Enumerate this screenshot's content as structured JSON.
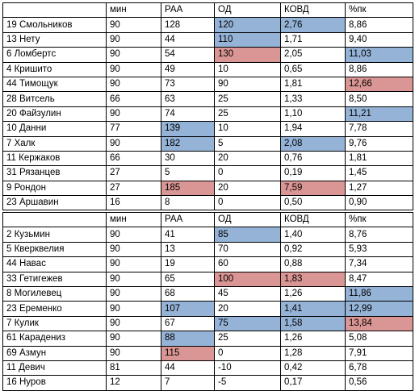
{
  "colors": {
    "blue_highlight": "#95b3d7",
    "red_highlight": "#da9694",
    "grid": "#000000"
  },
  "columns": [
    "",
    "мин",
    "РАА",
    "ОД",
    "КОВД",
    "%пк"
  ],
  "table_top": {
    "rows": [
      {
        "cells": [
          "19 Смольников",
          "90",
          "128",
          "120",
          "2,76",
          "8,86"
        ],
        "hl": [
          null,
          null,
          null,
          "blue",
          "blue",
          null
        ]
      },
      {
        "cells": [
          "13 Нету",
          "90",
          "44",
          "110",
          "1,71",
          "9,40"
        ],
        "hl": [
          null,
          null,
          null,
          "blue",
          null,
          null
        ]
      },
      {
        "cells": [
          "6 Ломбертс",
          "90",
          "54",
          "130",
          "2,05",
          "11,03"
        ],
        "hl": [
          null,
          null,
          null,
          "red",
          null,
          "blue"
        ]
      },
      {
        "cells": [
          "4 Кришито",
          "90",
          "49",
          "10",
          "0,65",
          "8,86"
        ],
        "hl": [
          null,
          null,
          null,
          null,
          null,
          null
        ]
      },
      {
        "cells": [
          "44 Тимощук",
          "90",
          "73",
          "90",
          "1,81",
          "12,66"
        ],
        "hl": [
          null,
          null,
          null,
          null,
          null,
          "red"
        ]
      },
      {
        "cells": [
          "28 Витсель",
          "66",
          "63",
          "25",
          "1,33",
          "8,50"
        ],
        "hl": [
          null,
          null,
          null,
          null,
          null,
          null
        ]
      },
      {
        "cells": [
          "20 Файзулин",
          "90",
          "74",
          "25",
          "1,10",
          "11,21"
        ],
        "hl": [
          null,
          null,
          null,
          null,
          null,
          "blue"
        ]
      },
      {
        "cells": [
          "10 Данни",
          "77",
          "139",
          "10",
          "1,94",
          "7,78"
        ],
        "hl": [
          null,
          null,
          "blue",
          null,
          null,
          null
        ]
      },
      {
        "cells": [
          "7 Халк",
          "90",
          "182",
          "5",
          "2,08",
          "9,76"
        ],
        "hl": [
          null,
          null,
          "blue",
          null,
          "blue",
          null
        ]
      },
      {
        "cells": [
          "11 Кержаков",
          "66",
          "30",
          "20",
          "0,76",
          "1,81"
        ],
        "hl": [
          null,
          null,
          null,
          null,
          null,
          null
        ]
      },
      {
        "cells": [
          "31 Рязанцев",
          "27",
          "5",
          "0",
          "0,19",
          "1,45"
        ],
        "hl": [
          null,
          null,
          null,
          null,
          null,
          null
        ]
      },
      {
        "cells": [
          "9 Рондон",
          "27",
          "185",
          "20",
          "7,59",
          "1,27"
        ],
        "hl": [
          null,
          null,
          "red",
          null,
          "red",
          null
        ]
      },
      {
        "cells": [
          "23 Аршавин",
          "16",
          "8",
          "0",
          "0,50",
          "0,90"
        ],
        "hl": [
          null,
          null,
          null,
          null,
          null,
          null
        ]
      }
    ]
  },
  "table_bottom": {
    "rows": [
      {
        "cells": [
          "2 Кузьмин",
          "90",
          "41",
          "85",
          "1,40",
          "8,76"
        ],
        "hl": [
          null,
          null,
          null,
          "blue",
          null,
          null
        ]
      },
      {
        "cells": [
          "5 Кверквелия",
          "90",
          "13",
          "70",
          "0,92",
          "5,93"
        ],
        "hl": [
          null,
          null,
          null,
          null,
          null,
          null
        ]
      },
      {
        "cells": [
          "44 Навас",
          "90",
          "19",
          "60",
          "0,88",
          "7,34"
        ],
        "hl": [
          null,
          null,
          null,
          null,
          null,
          null
        ]
      },
      {
        "cells": [
          "33 Гетигежев",
          "90",
          "65",
          "100",
          "1,83",
          "8,47"
        ],
        "hl": [
          null,
          null,
          null,
          "red",
          "red",
          null
        ]
      },
      {
        "cells": [
          "8 Могилевец",
          "90",
          "68",
          "45",
          "1,26",
          "11,86"
        ],
        "hl": [
          null,
          null,
          null,
          null,
          null,
          "blue"
        ]
      },
      {
        "cells": [
          "23 Еременко",
          "90",
          "107",
          "20",
          "1,41",
          "12,99"
        ],
        "hl": [
          null,
          null,
          "blue",
          null,
          "blue",
          "blue"
        ]
      },
      {
        "cells": [
          "7 Кулик",
          "90",
          "67",
          "75",
          "1,58",
          "13,84"
        ],
        "hl": [
          null,
          null,
          null,
          "blue",
          "blue",
          "red"
        ]
      },
      {
        "cells": [
          "61 Карадениз",
          "90",
          "88",
          "25",
          "1,26",
          "5,08"
        ],
        "hl": [
          null,
          null,
          "blue",
          null,
          null,
          null
        ]
      },
      {
        "cells": [
          "69 Азмун",
          "90",
          "115",
          "0",
          "1,28",
          "7,91"
        ],
        "hl": [
          null,
          null,
          "red",
          null,
          null,
          null
        ]
      },
      {
        "cells": [
          "11 Девич",
          "81",
          "44",
          "-10",
          "0,42",
          "6,78"
        ],
        "hl": [
          null,
          null,
          null,
          null,
          null,
          null
        ]
      },
      {
        "cells": [
          "16 Нуров",
          "12",
          "7",
          "-5",
          "0,17",
          "0,56"
        ],
        "hl": [
          null,
          null,
          null,
          null,
          null,
          null
        ]
      }
    ]
  }
}
